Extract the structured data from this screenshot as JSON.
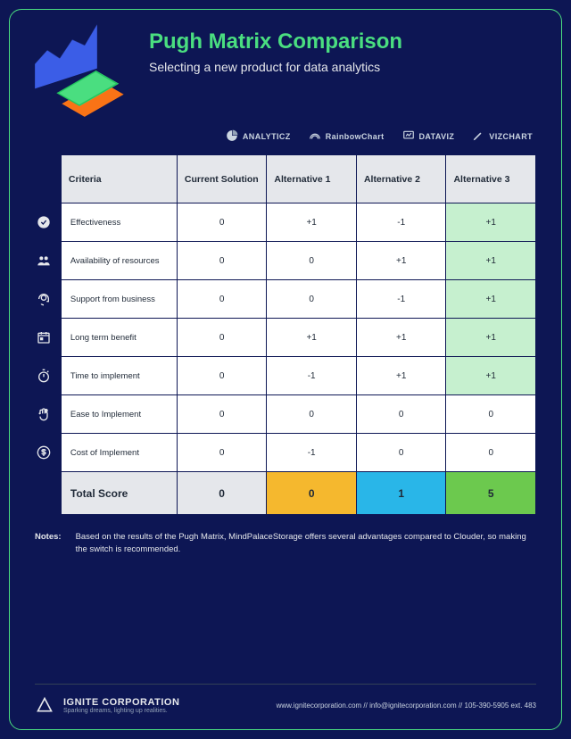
{
  "header": {
    "title": "Pugh Matrix Comparison",
    "subtitle": "Selecting a new product for data analytics"
  },
  "brands": [
    {
      "name": "ANALYTICZ",
      "icon": "pie"
    },
    {
      "name": "RainbowChart",
      "icon": "rainbow"
    },
    {
      "name": "DATAVIZ",
      "icon": "monitor"
    },
    {
      "name": "VIZCHART",
      "icon": "pencil"
    }
  ],
  "table": {
    "columns": [
      "Criteria",
      "Current Solution",
      "Alternative 1",
      "Alternative 2",
      "Alternative 3"
    ],
    "rows": [
      {
        "icon": "check",
        "label": "Effectiveness",
        "values": [
          "0",
          "+1",
          "-1",
          "+1"
        ],
        "highlight": [
          false,
          false,
          false,
          true
        ]
      },
      {
        "icon": "users",
        "label": "Availability of resources",
        "values": [
          "0",
          "0",
          "+1",
          "+1"
        ],
        "highlight": [
          false,
          false,
          false,
          true
        ]
      },
      {
        "icon": "headset",
        "label": "Support from business",
        "values": [
          "0",
          "0",
          "-1",
          "+1"
        ],
        "highlight": [
          false,
          false,
          false,
          true
        ]
      },
      {
        "icon": "calendar",
        "label": "Long term benefit",
        "values": [
          "0",
          "+1",
          "+1",
          "+1"
        ],
        "highlight": [
          false,
          false,
          false,
          true
        ]
      },
      {
        "icon": "stopwatch",
        "label": "Time to implement",
        "values": [
          "0",
          "-1",
          "+1",
          "+1"
        ],
        "highlight": [
          false,
          false,
          false,
          true
        ]
      },
      {
        "icon": "hand",
        "label": "Ease to Implement",
        "values": [
          "0",
          "0",
          "0",
          "0"
        ],
        "highlight": [
          false,
          false,
          false,
          false
        ]
      },
      {
        "icon": "dollar",
        "label": "Cost of Implement",
        "values": [
          "0",
          "-1",
          "0",
          "0"
        ],
        "highlight": [
          false,
          false,
          false,
          false
        ]
      }
    ],
    "total": {
      "label": "Total Score",
      "values": [
        "0",
        "0",
        "1",
        "5"
      ],
      "colors": [
        "#e5e7eb",
        "#f5b82e",
        "#29b6e8",
        "#6cc94e"
      ]
    }
  },
  "notes": {
    "label": "Notes:",
    "text": "Based on the results of the Pugh Matrix, MindPalaceStorage offers several advantages compared to Clouder, so making the switch is recommended."
  },
  "footer": {
    "company": "IGNITE CORPORATION",
    "tagline": "Sparking dreams, lighting up realities.",
    "contact": "www.ignitecorporation.com // info@ignitecorporation.com // 105-390-5905 ext. 483"
  },
  "style": {
    "background": "#0d1654",
    "border_color": "#4ade80",
    "title_color": "#4ade80",
    "header_cell_bg": "#e5e7eb",
    "cell_bg": "#ffffff",
    "highlight_bg": "#c6f0cf",
    "cell_border": "#0d1654",
    "text_light": "#e5e7eb",
    "text_dark": "#1f2937"
  }
}
